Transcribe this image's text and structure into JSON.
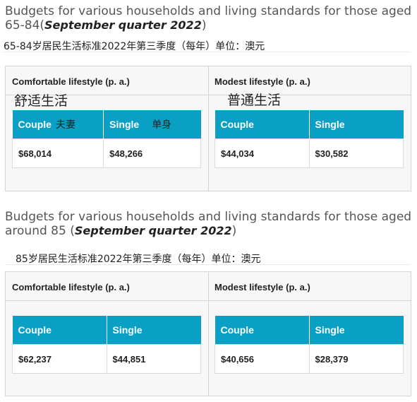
{
  "section1": {
    "heading_prefix": "Budgets for various households and living standards for those aged 65-84(",
    "heading_quarter": "September quarter 2022",
    "heading_suffix": ")",
    "chinese_caption": "65-84岁居民生活标准2022年第三季度（每年）单位：澳元",
    "comfortable": {
      "title": "Comfortable lifestyle (p. a.)",
      "annotation": "舒适生活",
      "col1": "Couple",
      "col1_cn": "夫妻",
      "col2": "Single",
      "col2_cn": "单身",
      "val1": "$68,014",
      "val2": "$48,266"
    },
    "modest": {
      "title": "Modest lifestyle (p. a.)",
      "annotation": "普通生活",
      "col1": "Couple",
      "col2": "Single",
      "val1": "$44,034",
      "val2": "$30,582"
    }
  },
  "section2": {
    "heading_prefix": "Budgets for various households and living standards for those aged around 85 (",
    "heading_quarter": "September quarter 2022",
    "heading_suffix": ")",
    "chinese_caption": "85岁居民生活标准2022年第三季度（每年）单位：澳元",
    "comfortable": {
      "title": "Comfortable lifestyle (p. a.)",
      "col1": "Couple",
      "col2": "Single",
      "val1": "$62,237",
      "val2": "$44,851"
    },
    "modest": {
      "title": "Modest lifestyle (p. a.)",
      "col1": "Couple",
      "col2": "Single",
      "val1": "$40,656",
      "val2": "$28,379"
    }
  }
}
